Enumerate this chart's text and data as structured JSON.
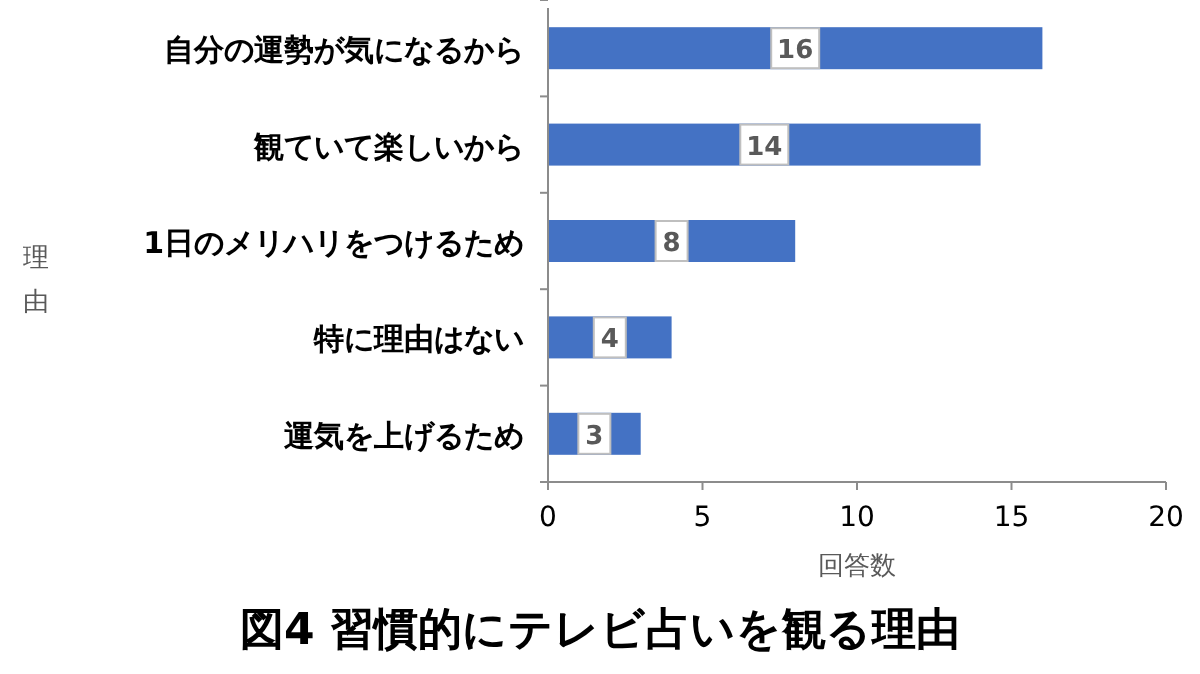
{
  "chart_data": {
    "type": "bar",
    "orientation": "horizontal",
    "title": "図4 習慣的にテレビ占いを観る理由",
    "xlabel": "回答数",
    "ylabel": "理由",
    "categories": [
      "自分の運勢が気になるから",
      "観ていて楽しいから",
      "1日のメリハリをつけるため",
      "特に理由はない",
      "運気を上げるため"
    ],
    "values": [
      16,
      14,
      8,
      4,
      3
    ],
    "color": "#4472c4",
    "xlim": [
      0,
      20
    ],
    "xticks": [
      0,
      5,
      10,
      15,
      20
    ],
    "data_labels": true
  }
}
